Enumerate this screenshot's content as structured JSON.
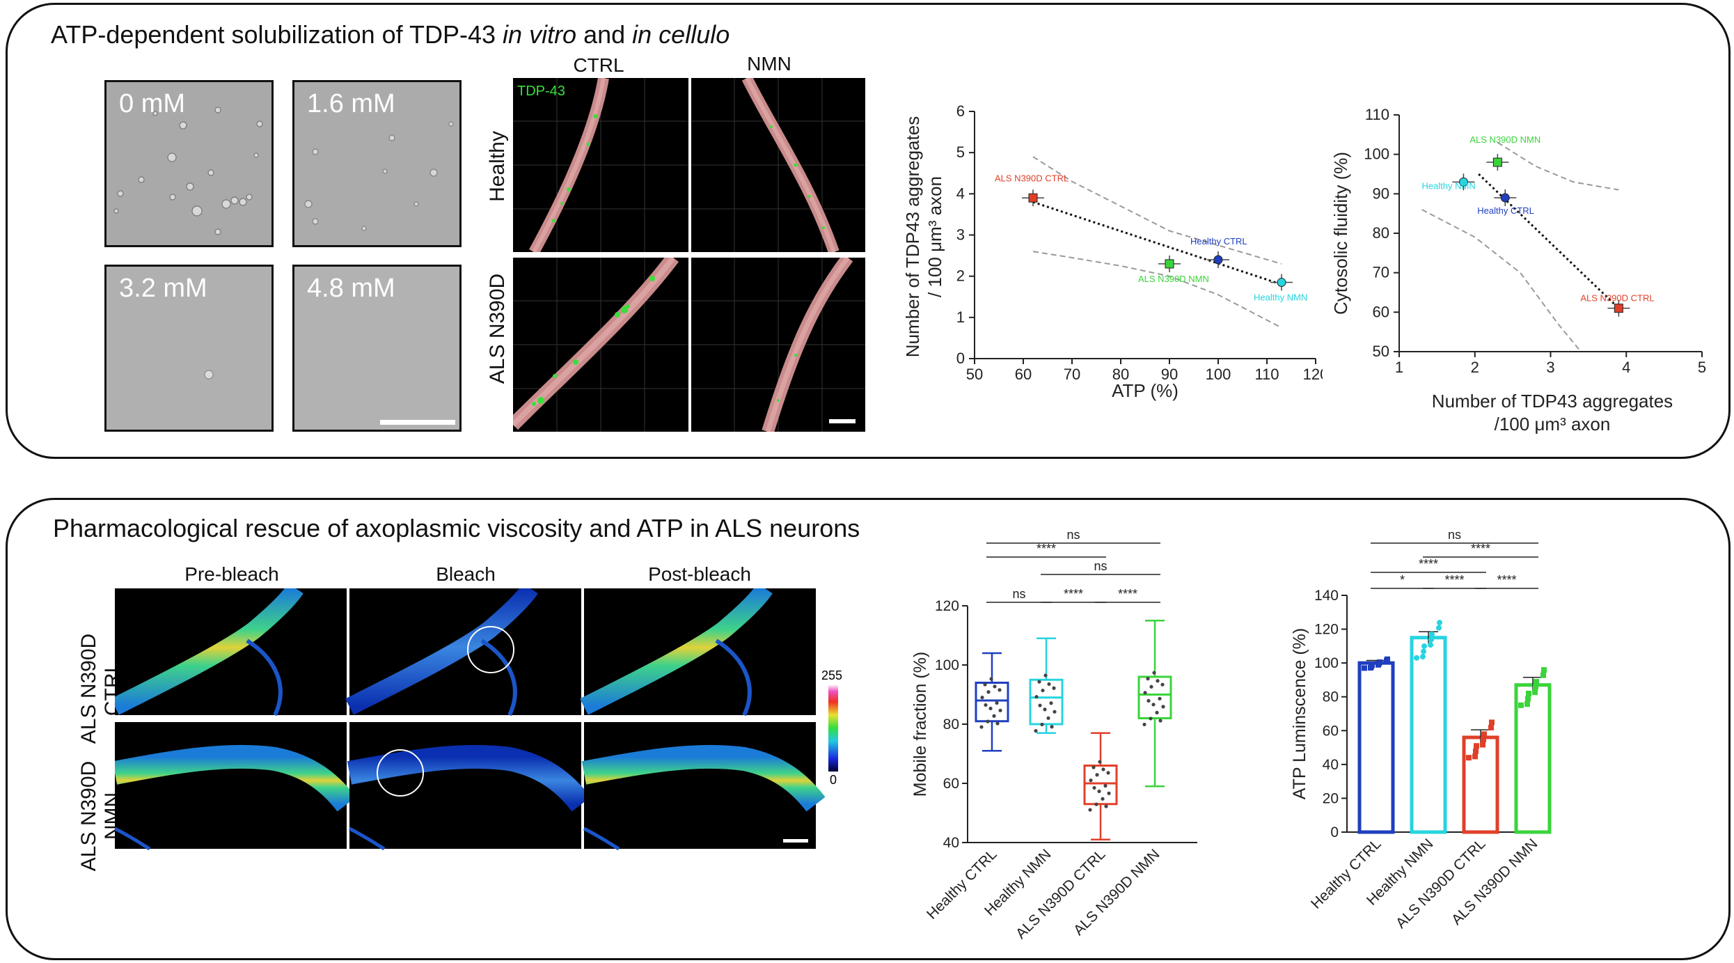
{
  "panel_top": {
    "title_prefix": "ATP-dependent solubilization of TDP-43 ",
    "title_italic1": "in vitro",
    "title_mid": " and ",
    "title_italic2": "in cellulo",
    "droplet_tiles": [
      {
        "label": "0 mM"
      },
      {
        "label": "1.6 mM"
      },
      {
        "label": "3.2 mM"
      },
      {
        "label": "4.8 mM"
      }
    ],
    "micro": {
      "col_labels": [
        "CTRL",
        "NMN"
      ],
      "row_labels": [
        "Healthy",
        "ALS N390D"
      ],
      "channel_label": "TDP-43"
    }
  },
  "panel_bottom": {
    "title": "Pharmacological rescue of axoplasmic viscosity and ATP in ALS neurons",
    "frap": {
      "col_labels": [
        "Pre-bleach",
        "Bleach",
        "Post-bleach"
      ],
      "row_labels": [
        [
          "ALS N390D",
          "CTRL"
        ],
        [
          "ALS N390D",
          "NMN"
        ]
      ],
      "scale_max": "255",
      "scale_min": "0"
    }
  },
  "colors": {
    "healthy_ctrl": "#1f3fbf",
    "healthy_nmn": "#26d4e0",
    "als_ctrl": "#e0402a",
    "als_nmn": "#3ad43a"
  },
  "chart_data": [
    {
      "type": "scatter",
      "id": "atp-vs-aggregates",
      "xlabel": "ATP (%)",
      "ylabel": "Number of TDP43 aggregates",
      "ylabel2": "/ 100 μm³ axon",
      "xlim": [
        50,
        120
      ],
      "ylim": [
        0,
        6
      ],
      "xticks": [
        "50",
        "60",
        "70",
        "80",
        "90",
        "100",
        "110",
        "120"
      ],
      "yticks": [
        "0",
        "1",
        "2",
        "3",
        "4",
        "5",
        "6"
      ],
      "points": [
        {
          "name": "ALS N390D CTRL",
          "x": 62,
          "y": 3.9,
          "color": "#e0402a"
        },
        {
          "name": "ALS N390D NMN",
          "x": 90,
          "y": 2.3,
          "color": "#3ad43a"
        },
        {
          "name": "Healthy CTRL",
          "x": 100,
          "y": 2.4,
          "color": "#1f3fbf"
        },
        {
          "name": "Healthy NMN",
          "x": 113,
          "y": 1.85,
          "color": "#26d4e0"
        }
      ]
    },
    {
      "type": "scatter",
      "id": "aggregates-vs-fluidity",
      "xlabel": "Number of TDP43 aggregates",
      "xlabel2": "/100 μm³ axon",
      "ylabel": "Cytosolic fluidity (%)",
      "xlim": [
        1,
        5
      ],
      "ylim": [
        50,
        110
      ],
      "xticks": [
        "1",
        "2",
        "3",
        "4",
        "5"
      ],
      "yticks": [
        "50",
        "60",
        "70",
        "80",
        "90",
        "100",
        "110"
      ],
      "points": [
        {
          "name": "ALS N390D NMN",
          "x": 2.3,
          "y": 98,
          "color": "#3ad43a"
        },
        {
          "name": "Healthy NMN",
          "x": 1.85,
          "y": 93,
          "color": "#26d4e0"
        },
        {
          "name": "Healthy CTRL",
          "x": 2.4,
          "y": 89,
          "color": "#1f3fbf"
        },
        {
          "name": "ALS N390D CTRL",
          "x": 3.9,
          "y": 61,
          "color": "#e0402a"
        }
      ]
    },
    {
      "type": "box",
      "id": "mobile-fraction",
      "ylabel": "Mobile fraction (%)",
      "ylim": [
        40,
        120
      ],
      "yticks": [
        "40",
        "60",
        "80",
        "100",
        "120"
      ],
      "categories": [
        "Healthy CTRL",
        "Healthy NMN",
        "ALS N390D CTRL",
        "ALS N390D NMN"
      ],
      "boxes": [
        {
          "min": 71,
          "q1": 81,
          "median": 88,
          "q3": 94,
          "max": 104,
          "color": "#1f3fbf"
        },
        {
          "min": 77,
          "q1": 80,
          "median": 89,
          "q3": 95,
          "max": 109,
          "color": "#26d4e0"
        },
        {
          "min": 41,
          "q1": 53,
          "median": 60,
          "q3": 66,
          "max": 77,
          "color": "#e0402a"
        },
        {
          "min": 59,
          "q1": 82,
          "median": 90,
          "q3": 96,
          "max": 115,
          "color": "#3ad43a"
        }
      ],
      "significance": [
        {
          "from": 0,
          "to": 3,
          "label": "ns"
        },
        {
          "from": 0,
          "to": 2,
          "label": "****"
        },
        {
          "from": 1,
          "to": 3,
          "label": "ns"
        },
        {
          "from": 0,
          "to": 1,
          "label": "ns"
        },
        {
          "from": 1,
          "to": 2,
          "label": "****"
        },
        {
          "from": 2,
          "to": 3,
          "label": "****"
        }
      ]
    },
    {
      "type": "bar",
      "id": "atp-luminescence",
      "ylabel": "ATP Luminscence (%)",
      "ylim": [
        0,
        140
      ],
      "yticks": [
        "0",
        "20",
        "40",
        "60",
        "80",
        "100",
        "120",
        "140"
      ],
      "categories": [
        "Healthy CTRL",
        "Healthy NMN",
        "ALS N390D CTRL",
        "ALS N390D NMN"
      ],
      "values": [
        100,
        115,
        56,
        87
      ],
      "errors": [
        1.5,
        3.5,
        4.5,
        4.5
      ],
      "colors": [
        "#1f3fbf",
        "#26d4e0",
        "#e0402a",
        "#3ad43a"
      ],
      "significance": [
        {
          "from": 0,
          "to": 3,
          "label": "ns"
        },
        {
          "from": 1,
          "to": 3,
          "label": "****"
        },
        {
          "from": 0,
          "to": 2,
          "label": "****"
        },
        {
          "from": 0,
          "to": 1,
          "label": "*"
        },
        {
          "from": 1,
          "to": 2,
          "label": "****"
        },
        {
          "from": 2,
          "to": 3,
          "label": "****"
        }
      ]
    }
  ]
}
